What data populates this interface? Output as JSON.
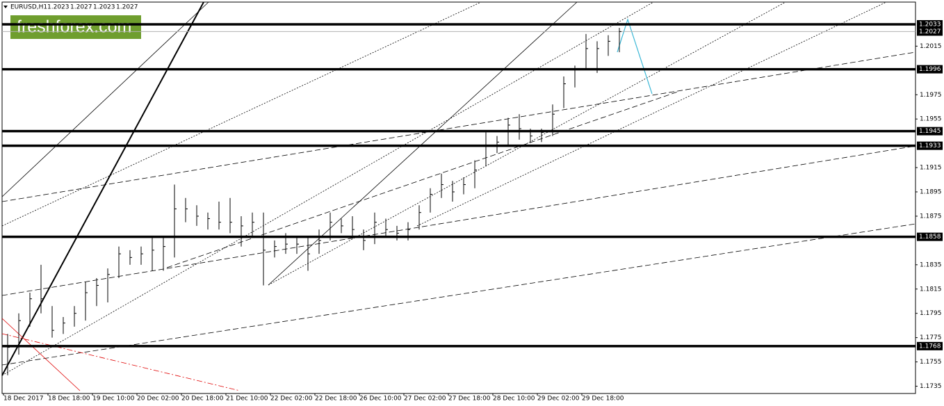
{
  "chart_data": {
    "type": "ohlc",
    "symbol": "EURUSD,H1",
    "header_prices": [
      1.2023,
      1.2027,
      1.2023,
      1.2027
    ],
    "watermark": "freshforex.com",
    "color": "#000000",
    "categories": [
      "18 Dec 2017",
      null,
      null,
      null,
      "18 Dec 18:00",
      null,
      null,
      null,
      "19 Dec 10:00",
      null,
      null,
      null,
      "20 Dec 02:00",
      null,
      null,
      null,
      "20 Dec 18:00",
      null,
      null,
      null,
      "21 Dec 10:00",
      null,
      null,
      null,
      "22 Dec 02:00",
      null,
      null,
      null,
      "22 Dec 18:00",
      null,
      null,
      null,
      "26 Dec 10:00",
      null,
      null,
      null,
      "27 Dec 02:00",
      null,
      null,
      null,
      "27 Dec 18:00",
      null,
      null,
      null,
      "28 Dec 10:00",
      null,
      null,
      null,
      "29 Dec 02:00",
      null,
      null,
      null,
      "29 Dec 18:00",
      null,
      null,
      null
    ],
    "high": [
      1.1778,
      1.1795,
      1.1812,
      1.1835,
      1.1801,
      1.1792,
      1.1801,
      1.1821,
      1.1824,
      1.1832,
      1.185,
      1.1847,
      1.185,
      1.1858,
      1.1858,
      1.1901,
      1.189,
      1.1884,
      1.1878,
      1.1887,
      1.189,
      1.1875,
      1.1878,
      1.1878,
      1.1855,
      1.1861,
      1.1858,
      1.1858,
      1.1864,
      1.1878,
      1.1873,
      1.1875,
      1.1864,
      1.1878,
      1.1873,
      1.1867,
      1.187,
      1.1884,
      1.1898,
      1.191,
      1.1904,
      1.1907,
      1.1921,
      1.1944,
      1.1941,
      1.1956,
      1.1959,
      1.1947,
      1.1947,
      1.1967,
      1.199,
      1.1999,
      1.2025,
      1.2019,
      1.2024,
      1.203
    ],
    "low": [
      1.1744,
      1.1761,
      1.1784,
      1.1795,
      1.1775,
      1.1778,
      1.1784,
      1.1789,
      1.1801,
      1.1804,
      1.1824,
      1.1835,
      1.1835,
      1.183,
      1.183,
      1.1841,
      1.187,
      1.1867,
      1.1864,
      1.1864,
      1.1861,
      1.185,
      1.1858,
      1.1818,
      1.1841,
      1.1844,
      1.1844,
      1.183,
      1.1844,
      1.1855,
      1.1861,
      1.1858,
      1.1847,
      1.1852,
      1.1858,
      1.1855,
      1.1855,
      1.1864,
      1.1878,
      1.189,
      1.1887,
      1.1893,
      1.1898,
      1.1916,
      1.1927,
      1.1933,
      1.1938,
      1.1936,
      1.1936,
      1.1941,
      1.1964,
      1.1981,
      1.1996,
      1.1993,
      1.2007,
      1.201
    ],
    "close": [
      1.1767,
      1.1789,
      1.1807,
      1.1807,
      1.1781,
      1.1787,
      1.1795,
      1.1812,
      1.1818,
      1.1827,
      1.1844,
      1.1841,
      1.1844,
      1.1847,
      1.185,
      1.1881,
      1.1881,
      1.1875,
      1.1873,
      1.187,
      1.187,
      1.1867,
      1.187,
      1.1847,
      1.185,
      1.1852,
      1.1852,
      1.1844,
      1.1855,
      1.187,
      1.1867,
      1.1864,
      1.1855,
      1.187,
      1.1864,
      1.1861,
      1.1864,
      1.1878,
      1.1893,
      1.1901,
      1.1895,
      1.1901,
      1.1913,
      1.1933,
      1.1936,
      1.195,
      1.1947,
      1.1941,
      1.1944,
      1.1959,
      1.1984,
      1.1996,
      1.2013,
      1.2013,
      1.2019,
      1.2027
    ],
    "ylim": [
      1.1729,
      1.2053
    ],
    "yticks": [
      1.2015,
      1.1975,
      1.1955,
      1.1915,
      1.1895,
      1.1875,
      1.1835,
      1.1815,
      1.1795,
      1.1775,
      1.1755,
      1.1735
    ],
    "levels": [
      1.2033,
      1.1996,
      1.1945,
      1.1933,
      1.1858,
      1.1768
    ],
    "current_price": 1.2027
  }
}
